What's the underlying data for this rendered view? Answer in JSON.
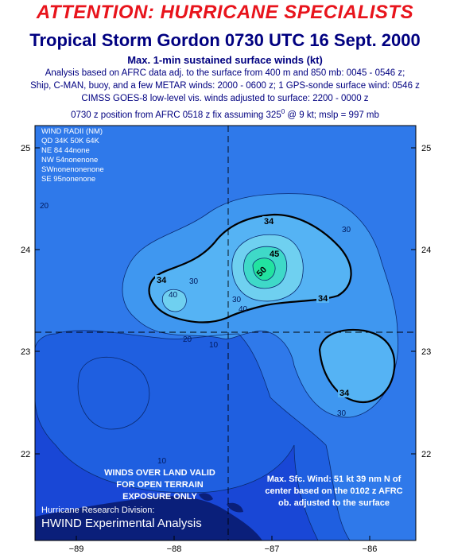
{
  "header": {
    "attention": "ATTENTION: HURRICANE SPECIALISTS",
    "title": "Tropical Storm Gordon 0730 UTC 16 Sept. 2000",
    "subtitle": "Max. 1-min sustained surface winds (kt)",
    "notes": [
      "Analysis based on AFRC data adj. to the surface from 400 m and 850 mb:  0045 - 0546 z;",
      "Ship, C-MAN, buoy, and a few METAR winds: 2000 - 0600 z;  1 GPS-sonde surface wind: 0546 z",
      "CIMSS GOES-8 low-level vis. winds adjusted to surface: 2200 - 0000 z"
    ],
    "position_note_pre": "0730 z position from AFRC 0518 z fix assuming 325",
    "position_note_sup": "0",
    "position_note_post": " @  9 kt; mslp = 997 mb"
  },
  "map": {
    "y_ticks": [
      "25",
      "24",
      "23",
      "22"
    ],
    "x_ticks": [
      "−89",
      "−88",
      "−87",
      "−86"
    ],
    "wind_radii": {
      "title": "WIND RADII (NM)",
      "header": "QD 34K 50K 64K",
      "rows": [
        "NE  84  44none",
        "NW  54nonenone",
        "SWnonenonenone",
        "SE  95nonenone"
      ]
    },
    "contour_labels": [
      "34",
      "34",
      "34",
      "34",
      "30",
      "30",
      "30",
      "30",
      "40",
      "40",
      "45",
      "50",
      "20",
      "20",
      "10",
      "10"
    ],
    "land_note": [
      "WINDS OVER LAND VALID",
      "FOR OPEN TERRAIN",
      "EXPOSURE ONLY"
    ],
    "max_wind_note": [
      "Max. Sfc. Wind: 51 kt 39 nm N of",
      "center based on the 0102 z AFRC",
      "ob. adjusted to the surface"
    ],
    "credit": "Hurricane Research Division:",
    "hwind": "HWIND Experimental Analysis",
    "colors": {
      "deep": "#1947d6",
      "level10": "#1f5fe0",
      "level20": "#2f79ea",
      "level30": "#3f97f0",
      "level34": "#55b3f4",
      "level40": "#6fd0f0",
      "level45": "#3fd9c8",
      "level50": "#22e3a0",
      "land": "#0a1f7a"
    }
  }
}
